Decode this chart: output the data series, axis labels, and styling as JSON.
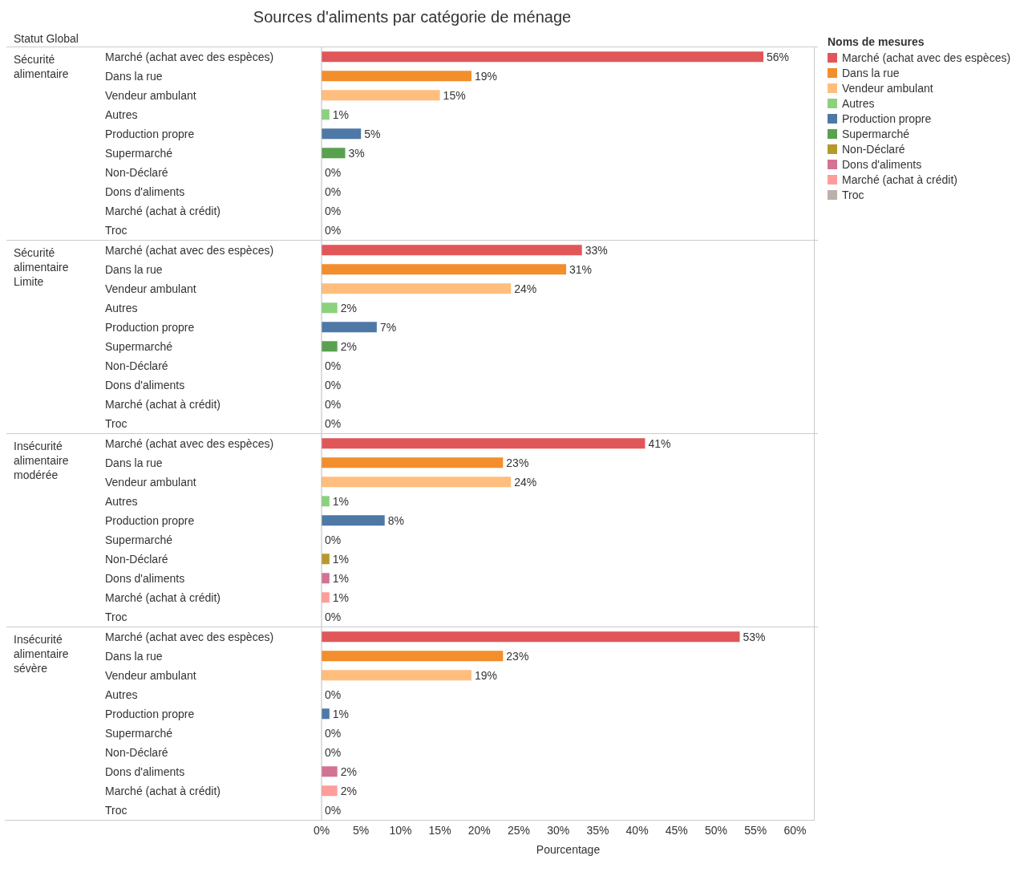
{
  "chart_data": [
    {
      "type": "bar",
      "orientation": "horizontal",
      "title": "Sources d'aliments par catégorie de ménage",
      "annotations": [
        "Statut Global"
      ],
      "ylabel": "Sécurité alimentaire",
      "legend_title": "Noms de mesures",
      "tick_labels": "y",
      "xlim": [
        0,
        62.5
      ],
      "categories": [
        "Marché (achat avec des espèces)",
        "Dans la rue",
        "Vendeur ambulant",
        "Autres",
        "Production propre",
        "Supermarché",
        "Non-Déclaré",
        "Dons d'aliments",
        "Marché (achat à crédit)",
        "Troc"
      ],
      "colors": [
        "#e15759",
        "#f28e2b",
        "#ffbe7d",
        "#8cd17d",
        "#4e79a7",
        "#59a14f",
        "#b6992d",
        "#d37295",
        "#ff9d9a",
        "#bab0ac"
      ],
      "values": [
        56,
        19,
        15,
        1,
        5,
        3,
        0,
        0,
        0,
        0
      ],
      "value_labels": [
        "56%",
        "19%",
        "15%",
        "1%",
        "5%",
        "3%",
        "0%",
        "0%",
        "0%",
        "0%"
      ]
    },
    {
      "type": "bar",
      "orientation": "horizontal",
      "ylabel": "Sécurité alimentaire Limite",
      "tick_labels": "y",
      "xlim": [
        0,
        62.5
      ],
      "categories": [
        "Marché (achat avec des espèces)",
        "Dans la rue",
        "Vendeur ambulant",
        "Autres",
        "Production propre",
        "Supermarché",
        "Non-Déclaré",
        "Dons d'aliments",
        "Marché (achat à crédit)",
        "Troc"
      ],
      "colors": [
        "#e15759",
        "#f28e2b",
        "#ffbe7d",
        "#8cd17d",
        "#4e79a7",
        "#59a14f",
        "#b6992d",
        "#d37295",
        "#ff9d9a",
        "#bab0ac"
      ],
      "values": [
        33,
        31,
        24,
        2,
        7,
        2,
        0,
        0,
        0,
        0
      ],
      "value_labels": [
        "33%",
        "31%",
        "24%",
        "2%",
        "7%",
        "2%",
        "0%",
        "0%",
        "0%",
        "0%"
      ]
    },
    {
      "type": "bar",
      "orientation": "horizontal",
      "ylabel": "Insécurité alimentaire modérée",
      "tick_labels": "y",
      "xlim": [
        0,
        62.5
      ],
      "categories": [
        "Marché (achat avec des espèces)",
        "Dans la rue",
        "Vendeur ambulant",
        "Autres",
        "Production propre",
        "Supermarché",
        "Non-Déclaré",
        "Dons d'aliments",
        "Marché (achat à crédit)",
        "Troc"
      ],
      "colors": [
        "#e15759",
        "#f28e2b",
        "#ffbe7d",
        "#8cd17d",
        "#4e79a7",
        "#59a14f",
        "#b6992d",
        "#d37295",
        "#ff9d9a",
        "#bab0ac"
      ],
      "values": [
        41,
        23,
        24,
        1,
        8,
        0,
        1,
        1,
        1,
        0
      ],
      "value_labels": [
        "41%",
        "23%",
        "24%",
        "1%",
        "8%",
        "0%",
        "1%",
        "1%",
        "1%",
        "0%"
      ]
    },
    {
      "type": "bar",
      "orientation": "horizontal",
      "ylabel": "Insécurité alimentaire sévère",
      "xlabel": "Pourcentage",
      "xlim": [
        0,
        62.5
      ],
      "xticks": [
        {
          "value": 0,
          "label": "0%"
        },
        {
          "value": 5,
          "label": "5%"
        },
        {
          "value": 10,
          "label": "10%"
        },
        {
          "value": 15,
          "label": "15%"
        },
        {
          "value": 20,
          "label": "20%"
        },
        {
          "value": 25,
          "label": "25%"
        },
        {
          "value": 30,
          "label": "30%"
        },
        {
          "value": 35,
          "label": "35%"
        },
        {
          "value": 40,
          "label": "40%"
        },
        {
          "value": 45,
          "label": "45%"
        },
        {
          "value": 50,
          "label": "50%"
        },
        {
          "value": 55,
          "label": "55%"
        },
        {
          "value": 60,
          "label": "60%"
        }
      ],
      "categories": [
        "Marché (achat avec des espèces)",
        "Dans la rue",
        "Vendeur ambulant",
        "Autres",
        "Production propre",
        "Supermarché",
        "Non-Déclaré",
        "Dons d'aliments",
        "Marché (achat à crédit)",
        "Troc"
      ],
      "colors": [
        "#e15759",
        "#f28e2b",
        "#ffbe7d",
        "#8cd17d",
        "#4e79a7",
        "#59a14f",
        "#b6992d",
        "#d37295",
        "#ff9d9a",
        "#bab0ac"
      ],
      "values": [
        53,
        23,
        19,
        0,
        1,
        0,
        0,
        2,
        2,
        0
      ],
      "value_labels": [
        "53%",
        "23%",
        "19%",
        "0%",
        "1%",
        "0%",
        "0%",
        "2%",
        "2%",
        "0%"
      ]
    }
  ]
}
